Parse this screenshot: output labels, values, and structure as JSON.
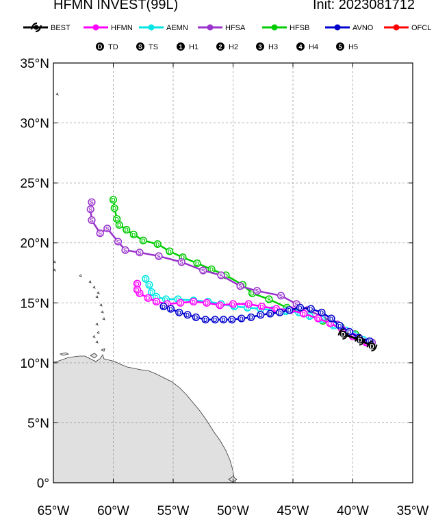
{
  "header": {
    "storm_title": "HFMN INVEST(99L)",
    "init_label": "Init: 2023081712"
  },
  "legend": {
    "models": [
      {
        "label": "BEST",
        "color": "#000000",
        "icon": "hurricane-symbol-icon"
      },
      {
        "label": "HFMN",
        "color": "#ff00ff"
      },
      {
        "label": "AEMN",
        "color": "#00e5e5"
      },
      {
        "label": "HFSA",
        "color": "#9933cc"
      },
      {
        "label": "HFSB",
        "color": "#00cc00"
      },
      {
        "label": "AVNO",
        "color": "#0000cc"
      },
      {
        "label": "OFCL",
        "color": "#ff0000"
      }
    ],
    "intensity": [
      {
        "symbol": "D",
        "label": "TD"
      },
      {
        "symbol": "S",
        "label": "TS"
      },
      {
        "symbol": "1",
        "label": "H1"
      },
      {
        "symbol": "2",
        "label": "H2"
      },
      {
        "symbol": "3",
        "label": "H3"
      },
      {
        "symbol": "4",
        "label": "H4"
      },
      {
        "symbol": "5",
        "label": "H5"
      }
    ]
  },
  "map": {
    "lon_range": [
      -65,
      -35
    ],
    "lat_range": [
      0,
      35
    ],
    "lon_ticks": [
      -65,
      -60,
      -55,
      -50,
      -45,
      -40,
      -35
    ],
    "lat_ticks": [
      0,
      5,
      10,
      15,
      20,
      25,
      30,
      35
    ],
    "lon_labels": [
      "65°W",
      "60°W",
      "55°W",
      "50°W",
      "45°W",
      "40°W",
      "35°W"
    ],
    "lat_labels": [
      "0°",
      "5°N",
      "10°N",
      "15°N",
      "20°N",
      "25°N",
      "30°N",
      "35°N"
    ],
    "gridlines": "dashed",
    "land_color": "#e0e0e0"
  },
  "chart_data": {
    "type": "map-tracks",
    "units": {
      "x": "degrees longitude",
      "y": "degrees latitude"
    },
    "series": [
      {
        "name": "HFSB",
        "color": "#00cc00",
        "points": [
          {
            "lon": -38.6,
            "lat": 11.8,
            "s": "D"
          },
          {
            "lon": -39.8,
            "lat": 12.4,
            "s": "D"
          },
          {
            "lon": -41.0,
            "lat": 13.0,
            "s": "D"
          },
          {
            "lon": -42.5,
            "lat": 13.5,
            "s": "S"
          },
          {
            "lon": -44.0,
            "lat": 14.2,
            "s": "S"
          },
          {
            "lon": -45.5,
            "lat": 14.6,
            "s": "S"
          },
          {
            "lon": -47.0,
            "lat": 15.3,
            "s": "S"
          },
          {
            "lon": -48.4,
            "lat": 15.8,
            "s": "D"
          },
          {
            "lon": -49.2,
            "lat": 16.5,
            "s": "D"
          },
          {
            "lon": -50.6,
            "lat": 17.3,
            "s": "D"
          },
          {
            "lon": -51.8,
            "lat": 17.8,
            "s": "D"
          },
          {
            "lon": -53.0,
            "lat": 18.3,
            "s": "D"
          },
          {
            "lon": -54.2,
            "lat": 18.8,
            "s": "D"
          },
          {
            "lon": -55.3,
            "lat": 19.3,
            "s": "D"
          },
          {
            "lon": -56.3,
            "lat": 19.9,
            "s": "D"
          },
          {
            "lon": -57.5,
            "lat": 20.2,
            "s": "D"
          },
          {
            "lon": -58.3,
            "lat": 20.7,
            "s": "D"
          },
          {
            "lon": -58.9,
            "lat": 21.1,
            "s": "D"
          },
          {
            "lon": -59.5,
            "lat": 21.5,
            "s": "D"
          },
          {
            "lon": -59.7,
            "lat": 22.0,
            "s": "D"
          },
          {
            "lon": -59.9,
            "lat": 22.9,
            "s": "D"
          },
          {
            "lon": -60.0,
            "lat": 23.6,
            "s": "D"
          }
        ]
      },
      {
        "name": "HFSA",
        "color": "#9933cc",
        "points": [
          {
            "lon": -38.4,
            "lat": 11.7,
            "s": "D"
          },
          {
            "lon": -40.0,
            "lat": 12.4,
            "s": "D"
          },
          {
            "lon": -41.3,
            "lat": 13.2,
            "s": "D"
          },
          {
            "lon": -42.6,
            "lat": 13.9,
            "s": "S"
          },
          {
            "lon": -43.8,
            "lat": 14.4,
            "s": "S"
          },
          {
            "lon": -44.7,
            "lat": 14.9,
            "s": "S"
          },
          {
            "lon": -46.0,
            "lat": 15.6,
            "s": "S"
          },
          {
            "lon": -48.0,
            "lat": 16.0,
            "s": "S"
          },
          {
            "lon": -49.4,
            "lat": 16.4,
            "s": "S"
          },
          {
            "lon": -51.0,
            "lat": 17.3,
            "s": "S"
          },
          {
            "lon": -52.5,
            "lat": 17.7,
            "s": "S"
          },
          {
            "lon": -54.3,
            "lat": 18.4,
            "s": "S"
          },
          {
            "lon": -56.2,
            "lat": 18.9,
            "s": "S"
          },
          {
            "lon": -57.8,
            "lat": 19.2,
            "s": "S"
          },
          {
            "lon": -59.0,
            "lat": 19.4,
            "s": "S"
          },
          {
            "lon": -59.6,
            "lat": 20.1,
            "s": "S"
          },
          {
            "lon": -60.5,
            "lat": 21.2,
            "s": "S"
          },
          {
            "lon": -61.1,
            "lat": 20.8,
            "s": "S"
          },
          {
            "lon": -61.8,
            "lat": 21.9,
            "s": "S"
          },
          {
            "lon": -61.9,
            "lat": 22.8,
            "s": "S"
          },
          {
            "lon": -61.8,
            "lat": 23.4,
            "s": "S"
          }
        ]
      },
      {
        "name": "AEMN",
        "color": "#00e5e5",
        "points": [
          {
            "lon": -39.1,
            "lat": 11.9,
            "s": "D"
          },
          {
            "lon": -39.9,
            "lat": 12.3,
            "s": "D"
          },
          {
            "lon": -40.6,
            "lat": 12.7,
            "s": "D"
          },
          {
            "lon": -41.6,
            "lat": 13.1,
            "s": "D"
          },
          {
            "lon": -42.6,
            "lat": 13.6,
            "s": "D"
          },
          {
            "lon": -43.6,
            "lat": 13.9,
            "s": "D"
          },
          {
            "lon": -44.5,
            "lat": 14.2,
            "s": "D"
          },
          {
            "lon": -45.6,
            "lat": 14.3,
            "s": "D"
          },
          {
            "lon": -46.7,
            "lat": 14.4,
            "s": "D"
          },
          {
            "lon": -47.7,
            "lat": 14.5,
            "s": "D"
          },
          {
            "lon": -48.8,
            "lat": 14.6,
            "s": "D"
          },
          {
            "lon": -49.9,
            "lat": 14.7,
            "s": "D"
          },
          {
            "lon": -51.0,
            "lat": 14.9,
            "s": "D"
          },
          {
            "lon": -52.1,
            "lat": 15.1,
            "s": "D"
          },
          {
            "lon": -53.3,
            "lat": 15.2,
            "s": "D"
          },
          {
            "lon": -54.6,
            "lat": 15.3,
            "s": "D"
          },
          {
            "lon": -55.6,
            "lat": 15.3,
            "s": "D"
          },
          {
            "lon": -56.4,
            "lat": 15.5,
            "s": "D"
          },
          {
            "lon": -56.8,
            "lat": 15.9,
            "s": "D"
          },
          {
            "lon": -57.0,
            "lat": 16.5,
            "s": "D"
          },
          {
            "lon": -57.3,
            "lat": 17.0,
            "s": "D"
          }
        ]
      },
      {
        "name": "HFMN",
        "color": "#ff00ff",
        "points": [
          {
            "lon": -38.9,
            "lat": 11.7,
            "s": "D"
          },
          {
            "lon": -40.0,
            "lat": 12.2,
            "s": "D"
          },
          {
            "lon": -40.9,
            "lat": 12.8,
            "s": "D"
          },
          {
            "lon": -41.9,
            "lat": 13.3,
            "s": "D"
          },
          {
            "lon": -42.9,
            "lat": 13.7,
            "s": "D"
          },
          {
            "lon": -44.1,
            "lat": 14.1,
            "s": "D"
          },
          {
            "lon": -45.2,
            "lat": 14.4,
            "s": "D"
          },
          {
            "lon": -46.4,
            "lat": 14.5,
            "s": "D"
          },
          {
            "lon": -47.6,
            "lat": 14.7,
            "s": "D"
          },
          {
            "lon": -48.7,
            "lat": 14.9,
            "s": "D"
          },
          {
            "lon": -50.0,
            "lat": 14.9,
            "s": "D"
          },
          {
            "lon": -51.1,
            "lat": 14.8,
            "s": "D"
          },
          {
            "lon": -52.2,
            "lat": 15.0,
            "s": "D"
          },
          {
            "lon": -53.3,
            "lat": 15.1,
            "s": "D"
          },
          {
            "lon": -54.4,
            "lat": 15.0,
            "s": "D"
          },
          {
            "lon": -55.5,
            "lat": 14.9,
            "s": "D"
          },
          {
            "lon": -56.4,
            "lat": 15.1,
            "s": "D"
          },
          {
            "lon": -57.1,
            "lat": 15.4,
            "s": "D"
          },
          {
            "lon": -57.8,
            "lat": 15.8,
            "s": "D"
          },
          {
            "lon": -58.0,
            "lat": 16.1,
            "s": "D"
          },
          {
            "lon": -58.0,
            "lat": 16.6,
            "s": "D"
          }
        ]
      },
      {
        "name": "AVNO",
        "color": "#0000cc",
        "points": [
          {
            "lon": -38.6,
            "lat": 11.8,
            "s": "D"
          },
          {
            "lon": -39.5,
            "lat": 12.1,
            "s": "D"
          },
          {
            "lon": -40.3,
            "lat": 12.6,
            "s": "D"
          },
          {
            "lon": -41.1,
            "lat": 13.1,
            "s": "D"
          },
          {
            "lon": -41.8,
            "lat": 13.7,
            "s": "D"
          },
          {
            "lon": -42.6,
            "lat": 14.2,
            "s": "D"
          },
          {
            "lon": -43.5,
            "lat": 14.5,
            "s": "D"
          },
          {
            "lon": -44.4,
            "lat": 14.6,
            "s": "D"
          },
          {
            "lon": -45.3,
            "lat": 14.4,
            "s": "D"
          },
          {
            "lon": -46.1,
            "lat": 14.2,
            "s": "D"
          },
          {
            "lon": -46.9,
            "lat": 14.1,
            "s": "D"
          },
          {
            "lon": -47.7,
            "lat": 14.0,
            "s": "D"
          },
          {
            "lon": -48.5,
            "lat": 13.8,
            "s": "D"
          },
          {
            "lon": -49.3,
            "lat": 13.7,
            "s": "D"
          },
          {
            "lon": -50.1,
            "lat": 13.6,
            "s": "D"
          },
          {
            "lon": -50.8,
            "lat": 13.6,
            "s": "D"
          },
          {
            "lon": -51.5,
            "lat": 13.6,
            "s": "D"
          },
          {
            "lon": -52.3,
            "lat": 13.6,
            "s": "D"
          },
          {
            "lon": -53.1,
            "lat": 13.8,
            "s": "D"
          },
          {
            "lon": -53.8,
            "lat": 14.0,
            "s": "D"
          },
          {
            "lon": -54.5,
            "lat": 14.2,
            "s": "D"
          },
          {
            "lon": -55.2,
            "lat": 14.5,
            "s": "D"
          },
          {
            "lon": -55.8,
            "lat": 14.7,
            "s": "D"
          }
        ]
      },
      {
        "name": "BEST",
        "color": "#000000",
        "points": [
          {
            "lon": -38.4,
            "lat": 11.4,
            "s": "D"
          },
          {
            "lon": -39.4,
            "lat": 11.9,
            "s": "D"
          },
          {
            "lon": -40.8,
            "lat": 12.4,
            "s": "D"
          }
        ]
      }
    ]
  }
}
